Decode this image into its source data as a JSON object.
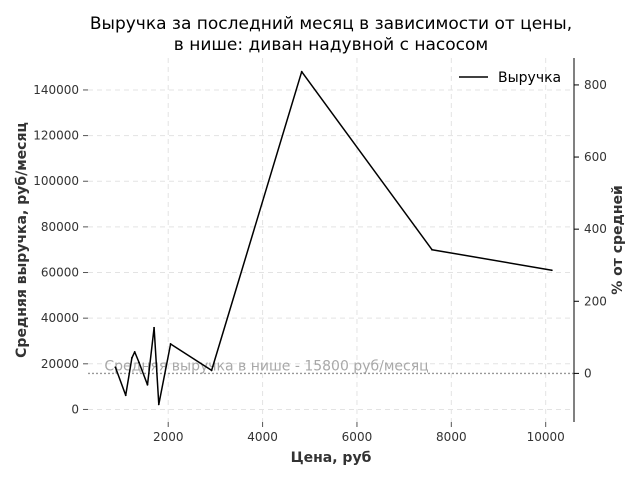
{
  "chart_data": {
    "type": "line",
    "title_line1": "Выручка за последний месяц в зависимости от цены,",
    "title_line2": "в нише: диван надувной с насосом",
    "xlabel": "Цена, руб",
    "ylabel": "Средняя выручка, руб/месяц",
    "ylabel_right": "% от средней",
    "xlim": [
      300,
      10600
    ],
    "ylim": [
      -5500,
      154000
    ],
    "xticks": [
      2000,
      4000,
      6000,
      8000,
      10000
    ],
    "yticks": [
      0,
      20000,
      40000,
      60000,
      80000,
      100000,
      120000,
      140000
    ],
    "y2ticks": [
      0,
      200,
      400,
      600,
      800
    ],
    "grid": true,
    "legend_position": "top-right",
    "series": [
      {
        "name": "Выручка",
        "color": "#000000",
        "x": [
          880,
          1100,
          1230,
          1290,
          1380,
          1560,
          1700,
          1800,
          2050,
          2920,
          4830,
          7590,
          10130
        ],
        "y": [
          18500,
          6200,
          22600,
          25200,
          20600,
          10800,
          35800,
          2200,
          28700,
          17100,
          148000,
          70000,
          61000
        ]
      }
    ],
    "reference_line": {
      "value": 15800,
      "label": "Средняя выручка в нише - 15800 руб/месяц",
      "color": "#999999"
    }
  }
}
